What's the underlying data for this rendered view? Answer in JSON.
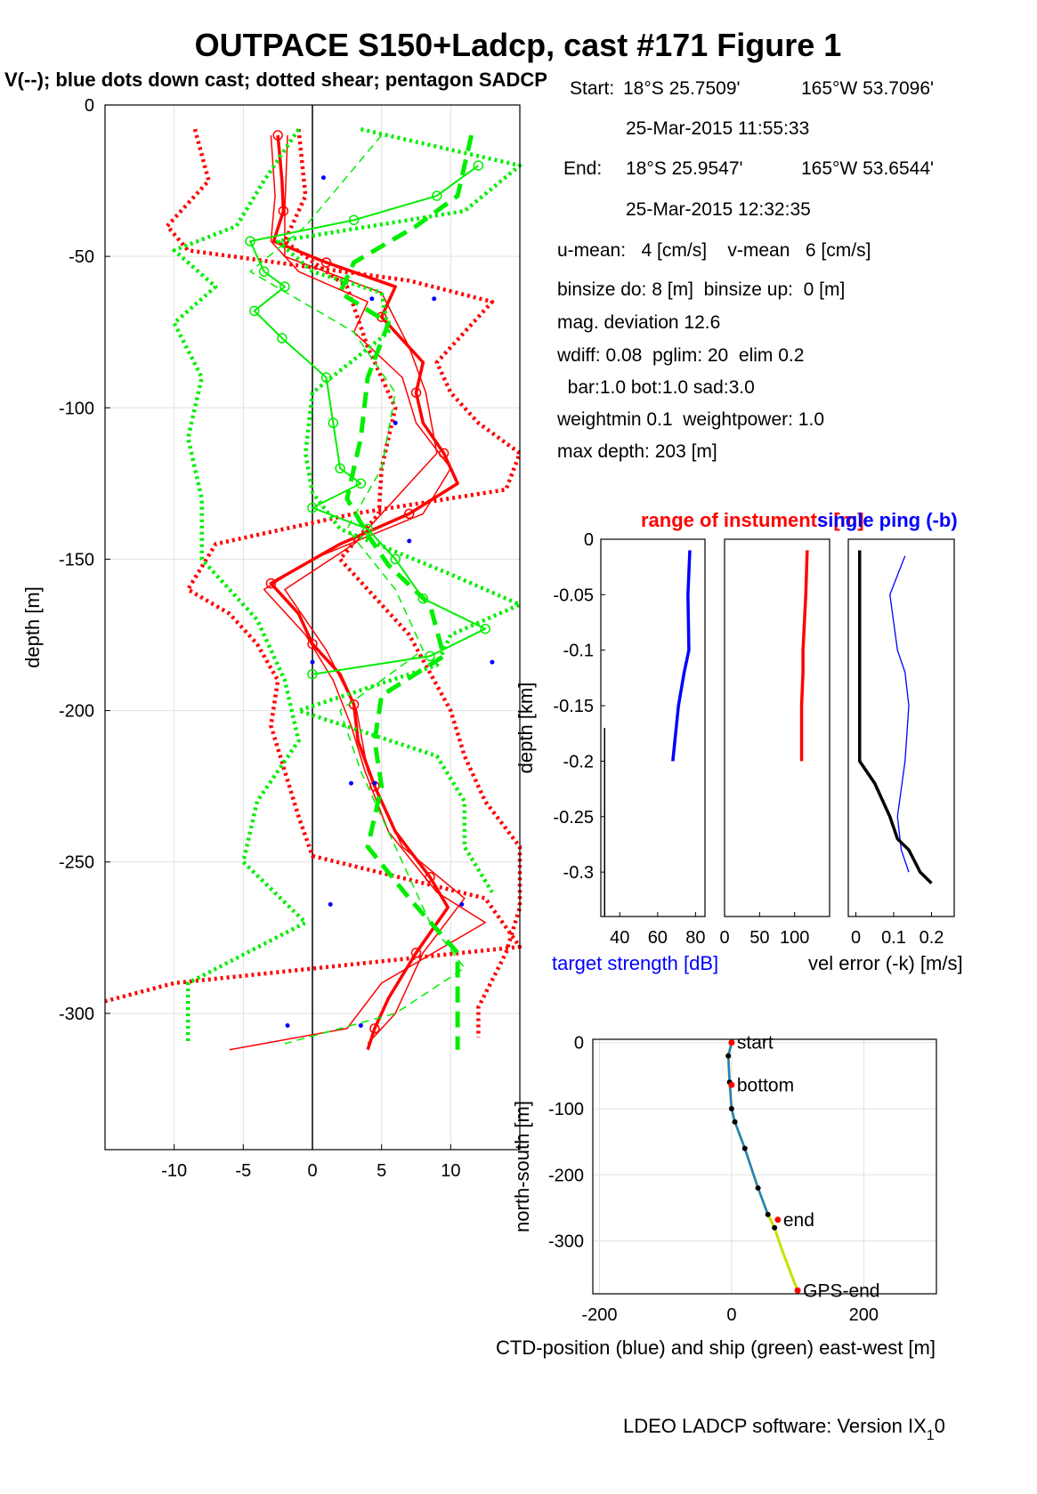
{
  "figure": {
    "title": "OUTPACE S150+Ladcp, cast #171  Figure 1",
    "footer": "LDEO LADCP software: Version IX",
    "footer_sub": "1",
    "footer_end": "0"
  },
  "info": {
    "start_label": "Start:",
    "start_lat": "18°S 25.7509'",
    "start_lon": "165°W 53.7096'",
    "start_time": "25-Mar-2015 11:55:33",
    "end_label": "End:",
    "end_lat": "18°S 25.9547'",
    "end_lon": "165°W 53.6544'",
    "end_time": "25-Mar-2015 12:32:35",
    "umean": "u-mean:   4 [cm/s]    v-mean   6 [cm/s]",
    "binsize": "binsize do: 8 [m]  binsize up:  0 [m]",
    "magdev": "mag. deviation 12.6",
    "wdiff": "wdiff: 0.08  pglim: 20  elim 0.2",
    "bar": "  bar:1.0 bot:1.0 sad:3.0",
    "weight": "weightmin 0.1  weightpower: 1.0",
    "maxdepth": "max depth: 203 [m]"
  },
  "colors": {
    "u": "#ff0000",
    "v": "#00ee00",
    "blue": "#0000ff",
    "black": "#000000"
  },
  "chart_data": [
    {
      "id": "velocity-profile",
      "type": "line",
      "title": "V(--); blue dots down cast; dotted shear; pentagon SADCP",
      "xlabel": "",
      "ylabel": "depth [m]",
      "xlim": [
        -15,
        15
      ],
      "ylim": [
        -345,
        0
      ],
      "xticks": [
        -10,
        -5,
        0,
        5,
        10
      ],
      "yticks": [
        0,
        -50,
        -100,
        -150,
        -200,
        -250,
        -300
      ],
      "grid": true,
      "series": [
        {
          "name": "u",
          "color": "#ff0000",
          "style": "solid-thick",
          "depth": [
            -10,
            -25,
            -35,
            -45,
            -52,
            -60,
            -70,
            -85,
            -95,
            -105,
            -115,
            -125,
            -135,
            -145,
            -158,
            -168,
            -178,
            -188,
            -198,
            -210,
            -225,
            -240,
            -255,
            -265,
            -280,
            -295,
            -305,
            -312
          ],
          "values": [
            -2.5,
            -2.2,
            -2.1,
            -2.8,
            1,
            6,
            5,
            8,
            7.5,
            8,
            9.5,
            10.5,
            7,
            2,
            -3,
            -1,
            0,
            2,
            3,
            3.3,
            4.5,
            6,
            8.5,
            9.8,
            7.5,
            5.5,
            4.5,
            4
          ]
        },
        {
          "name": "u-down",
          "color": "#ff0000",
          "style": "solid-thin",
          "depth": [
            -10,
            -30,
            -45,
            -55,
            -65,
            -75,
            -90,
            -105,
            -120,
            -135,
            -150,
            -160,
            -175,
            -190,
            -205,
            -220,
            -240,
            -260,
            -270,
            -290,
            -305,
            -312
          ],
          "values": [
            -3,
            -2.7,
            -3,
            -1,
            4,
            3,
            6.5,
            7.5,
            10,
            8,
            0,
            -3.5,
            -0.5,
            1.5,
            2.8,
            3.8,
            5.5,
            9,
            12.5,
            5,
            2.5,
            -6
          ]
        },
        {
          "name": "u-up",
          "color": "#ff0000",
          "style": "solid-thin",
          "depth": [
            -10,
            -35,
            -50,
            -62,
            -80,
            -95,
            -115,
            -130,
            -145,
            -160,
            -180,
            -200,
            -220,
            -245,
            -262,
            -280,
            -300,
            -310
          ],
          "values": [
            -1.8,
            -2,
            -2,
            5,
            7,
            8.2,
            9,
            6,
            3,
            -2,
            1,
            3.2,
            4,
            6.5,
            11,
            8,
            6,
            4
          ]
        },
        {
          "name": "u-shear",
          "color": "#ff0000",
          "style": "dotted",
          "depth": [
            -8,
            -25,
            -40,
            -48,
            -58,
            -65,
            -75,
            -85,
            -95,
            -105,
            -115,
            -127,
            -135,
            -145,
            -160,
            -168,
            -178,
            -190,
            -205,
            -220,
            -235,
            -248,
            -262,
            -278,
            -290,
            -296
          ],
          "values": [
            -8.5,
            -7.5,
            -10.5,
            -9,
            7,
            13,
            11,
            9,
            10,
            12,
            15,
            14,
            3,
            -7,
            -9,
            -6,
            -4,
            -2.5,
            -3,
            -2,
            -1,
            0,
            12.5,
            15,
            -10,
            -15
          ]
        },
        {
          "name": "u-shear-right",
          "color": "#ff0000",
          "style": "dotted",
          "depth": [
            -8,
            -30,
            -45,
            -60,
            -80,
            -100,
            -120,
            -135,
            -150,
            -175,
            -200,
            -215,
            -230,
            -245,
            -265,
            -280,
            -298,
            -308
          ],
          "values": [
            -1,
            -0.5,
            -2,
            2.5,
            4,
            6,
            5,
            4.8,
            2,
            7,
            10,
            11,
            12.5,
            15,
            15,
            14,
            12,
            12
          ]
        },
        {
          "name": "v",
          "color": "#00ee00",
          "style": "dashed-thick",
          "depth": [
            -10,
            -30,
            -40,
            -52,
            -62,
            -72,
            -90,
            -110,
            -130,
            -142,
            -152,
            -165,
            -182,
            -195,
            -210,
            -225,
            -245,
            -262,
            -280,
            -295,
            -312
          ],
          "values": [
            11.5,
            10.5,
            7.5,
            3,
            2,
            5.5,
            4,
            3.5,
            2.5,
            4,
            5.5,
            8.5,
            9.5,
            5,
            4.5,
            5,
            4,
            7,
            10.5,
            10.5,
            10.5
          ]
        },
        {
          "name": "v-down",
          "color": "#00ee00",
          "style": "dashed-thin",
          "depth": [
            -10,
            -40,
            -55,
            -75,
            -95,
            -120,
            -140,
            -160,
            -180,
            -200,
            -220,
            -250,
            -270,
            -285,
            -300,
            -310
          ],
          "values": [
            5,
            -0.5,
            -4.5,
            3,
            6,
            5,
            2.5,
            6,
            8,
            2,
            3.5,
            6.5,
            8.5,
            11,
            6,
            -2
          ]
        },
        {
          "name": "v-sadcp",
          "color": "#00ee00",
          "style": "solid-star",
          "depth": [
            -20,
            -30,
            -38,
            -45,
            -55,
            -60,
            -68,
            -77,
            -90,
            -105,
            -120,
            -125,
            -133,
            -140,
            -150,
            -163,
            -173,
            -182,
            -188
          ],
          "values": [
            12,
            9,
            3,
            -4.5,
            -3.5,
            -2,
            -4.2,
            -2.2,
            1,
            1.5,
            2,
            3.5,
            0,
            4,
            6,
            8,
            12.5,
            8.5,
            0
          ]
        },
        {
          "name": "v-shear-left",
          "color": "#00ee00",
          "style": "dotted",
          "depth": [
            -8,
            -25,
            -40,
            -48,
            -60,
            -72,
            -90,
            -110,
            -130,
            -150,
            -170,
            -190,
            -210,
            -230,
            -250,
            -270,
            -290,
            -310
          ],
          "values": [
            -1,
            -3.5,
            -5.5,
            -10,
            -7,
            -10,
            -8,
            -9,
            -8,
            -8,
            -4,
            -2,
            -1,
            -4,
            -5,
            -0.5,
            -9,
            -9
          ]
        },
        {
          "name": "v-shear-right",
          "color": "#00ee00",
          "style": "dotted",
          "depth": [
            -8,
            -20,
            -35,
            -45,
            -55,
            -62,
            -75,
            -95,
            -115,
            -128,
            -140,
            -155,
            -165,
            -175,
            -185,
            -200,
            -215,
            -230,
            -245,
            -260
          ],
          "values": [
            3.5,
            15,
            11,
            -2.5,
            0,
            5,
            5.5,
            0,
            -0.5,
            0,
            2,
            10,
            15,
            10,
            9,
            -1,
            9,
            11,
            11,
            13
          ]
        }
      ],
      "downcast_dots_depth": [
        -24,
        -64,
        -64,
        -105,
        -144,
        -184,
        -184,
        -224,
        -224,
        -264,
        -264,
        -304,
        -304
      ],
      "downcast_dots_u": [
        0.8,
        4.3,
        8.8,
        6,
        7,
        0,
        13,
        2.8,
        4.5,
        1.3,
        10.8,
        -1.8,
        3.5
      ]
    },
    {
      "id": "range-panel",
      "type": "line",
      "title": "range of instuments [m]",
      "ylabel": "depth [km]",
      "yticks": [
        0,
        -0.05,
        -0.1,
        -0.15,
        -0.2,
        -0.25,
        -0.3
      ],
      "ylim": [
        -0.34,
        0
      ],
      "xlabel": "target strength [dB]",
      "xticks": [
        40,
        60,
        80
      ],
      "xlim": [
        30,
        85
      ],
      "target_strength_depth": [
        -0.01,
        -0.05,
        -0.1,
        -0.12,
        -0.15,
        -0.2
      ],
      "target_strength": [
        77,
        76,
        76.5,
        74,
        71,
        68
      ],
      "black_line_depth": [
        -0.17,
        -0.34
      ],
      "black_line": [
        32,
        32
      ]
    },
    {
      "id": "range-panel-2",
      "type": "line",
      "xticks": [
        0,
        50,
        100
      ],
      "xlim": [
        0,
        150
      ],
      "ylim": [
        -0.34,
        0
      ],
      "series_depth": [
        -0.01,
        -0.05,
        -0.1,
        -0.12,
        -0.15,
        -0.2
      ],
      "series": [
        118,
        116,
        112,
        112,
        110,
        110
      ]
    },
    {
      "id": "vel-error-panel",
      "type": "line",
      "title": "single ping (-b)",
      "xlabel": "vel error (-k) [m/s]",
      "xticks": [
        0,
        0.1,
        0.2
      ],
      "xlim": [
        -0.02,
        0.26
      ],
      "ylim": [
        -0.34,
        0
      ],
      "vel_error_depth": [
        -0.01,
        -0.05,
        -0.1,
        -0.15,
        -0.2,
        -0.22,
        -0.25,
        -0.27,
        -0.28,
        -0.3,
        -0.31
      ],
      "vel_error": [
        0.01,
        0.01,
        0.01,
        0.01,
        0.01,
        0.05,
        0.09,
        0.11,
        0.14,
        0.17,
        0.2
      ],
      "single_ping_depth": [
        -0.015,
        -0.05,
        -0.1,
        -0.12,
        -0.15,
        -0.2,
        -0.25,
        -0.28,
        -0.3
      ],
      "single_ping": [
        0.13,
        0.09,
        0.11,
        0.13,
        0.14,
        0.13,
        0.11,
        0.12,
        0.14
      ]
    },
    {
      "id": "position-panel",
      "type": "line",
      "xlabel": "CTD-position (blue) and ship (green) east-west [m]",
      "ylabel": "north-south [m]",
      "xticks": [
        -200,
        0,
        200
      ],
      "yticks": [
        0,
        -100,
        -200,
        -300
      ],
      "xlim": [
        -210,
        310
      ],
      "ylim": [
        -380,
        5
      ],
      "track_x": [
        0,
        -5,
        -3,
        0,
        5,
        20,
        40,
        55,
        65,
        75,
        90,
        100
      ],
      "track_y": [
        0,
        -20,
        -60,
        -100,
        -120,
        -160,
        -220,
        -260,
        -280,
        -310,
        -350,
        -375
      ],
      "labels": [
        {
          "text": "start",
          "x": 0,
          "y": 0
        },
        {
          "text": "bottom",
          "x": 0,
          "y": -64
        },
        {
          "text": "end",
          "x": 70,
          "y": -268
        },
        {
          "text": "GPS-end",
          "x": 100,
          "y": -375
        }
      ]
    }
  ]
}
